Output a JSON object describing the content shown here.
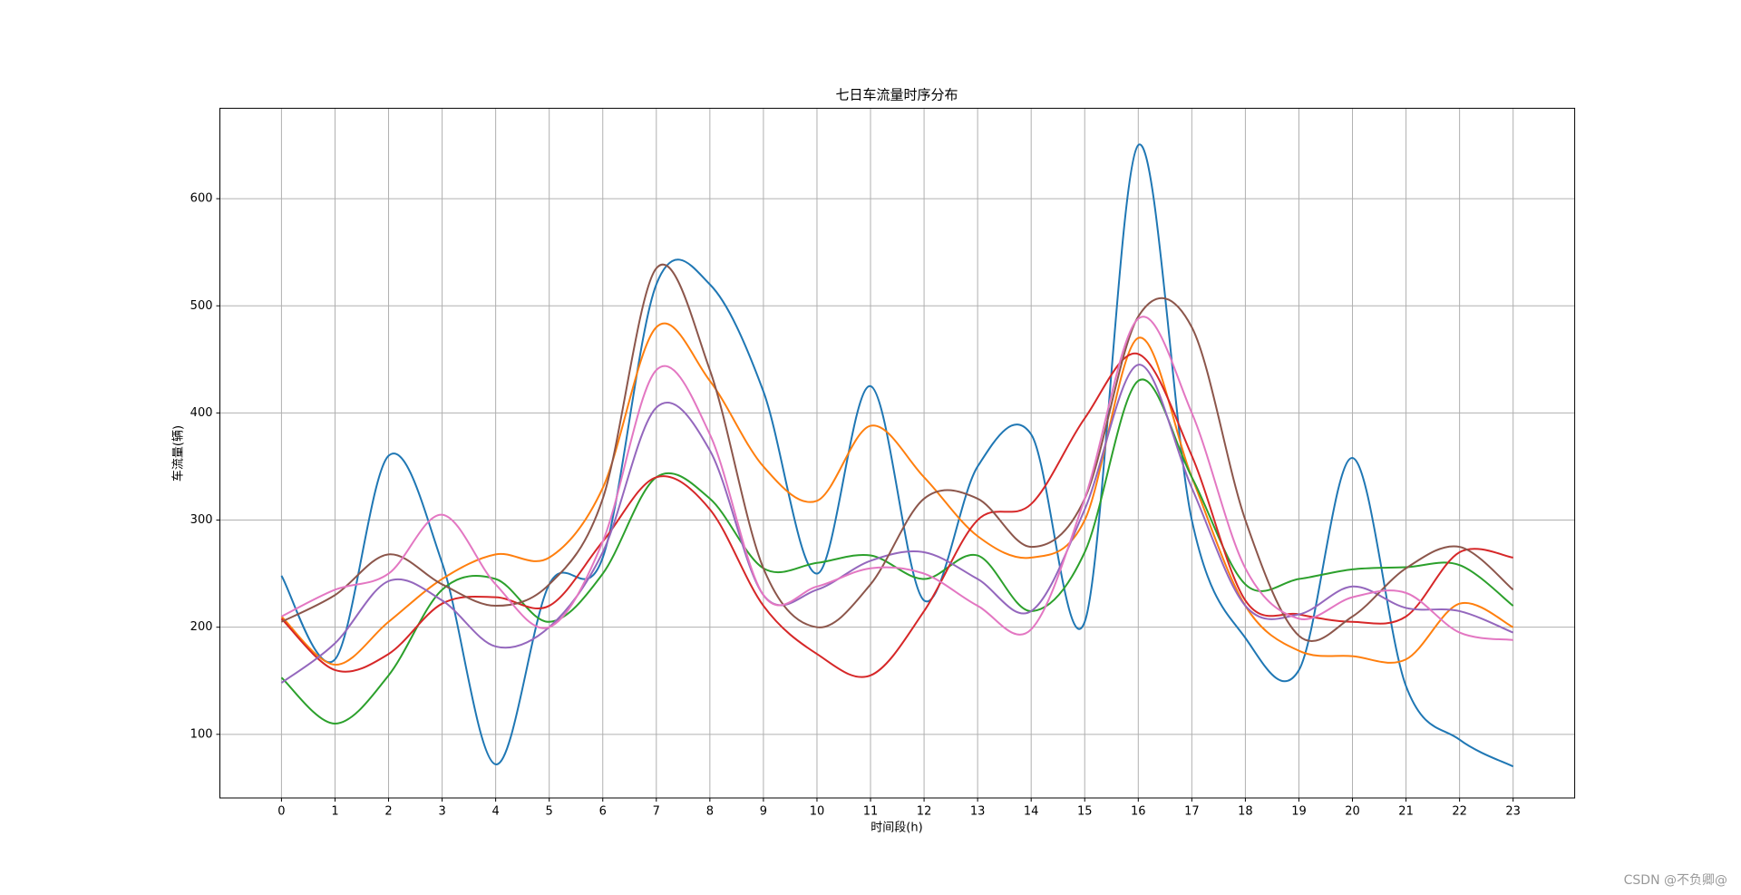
{
  "chart_data": {
    "type": "line",
    "title": "七日车流量时序分布",
    "x_label": "时间段(h)",
    "y_label": "车流量(辆)",
    "x": [
      0,
      1,
      2,
      3,
      4,
      5,
      6,
      7,
      8,
      9,
      10,
      11,
      12,
      13,
      14,
      15,
      16,
      17,
      18,
      19,
      20,
      21,
      22,
      23
    ],
    "xlim": [
      -1.15,
      24.15
    ],
    "xticks": [
      0,
      1,
      2,
      3,
      4,
      5,
      6,
      7,
      8,
      9,
      10,
      11,
      12,
      13,
      14,
      15,
      16,
      17,
      18,
      19,
      20,
      21,
      22,
      23
    ],
    "ylim": [
      40.6,
      684.4
    ],
    "yticks": [
      100,
      200,
      300,
      400,
      500,
      600
    ],
    "grid": true,
    "smooth": true,
    "series": [
      {
        "color": "#1f77b4",
        "values": [
          248,
          170,
          360,
          260,
          72,
          240,
          265,
          520,
          520,
          420,
          250,
          425,
          225,
          350,
          380,
          205,
          650,
          300,
          190,
          160,
          358,
          145,
          95,
          70
        ]
      },
      {
        "color": "#ff7f0e",
        "values": [
          210,
          165,
          205,
          245,
          268,
          265,
          330,
          480,
          430,
          350,
          318,
          388,
          340,
          285,
          265,
          300,
          470,
          340,
          220,
          178,
          173,
          170,
          222,
          200
        ]
      },
      {
        "color": "#2ca02c",
        "values": [
          153,
          110,
          155,
          235,
          245,
          205,
          250,
          340,
          320,
          255,
          260,
          267,
          245,
          267,
          215,
          270,
          430,
          340,
          240,
          245,
          254,
          256,
          258,
          220
        ]
      },
      {
        "color": "#d62728",
        "values": [
          208,
          160,
          175,
          222,
          228,
          220,
          280,
          340,
          310,
          220,
          175,
          155,
          215,
          300,
          315,
          395,
          455,
          360,
          225,
          212,
          205,
          210,
          270,
          265
        ]
      },
      {
        "color": "#9467bd",
        "values": [
          148,
          185,
          243,
          225,
          182,
          200,
          270,
          405,
          365,
          230,
          235,
          262,
          270,
          245,
          215,
          310,
          445,
          330,
          220,
          212,
          238,
          218,
          215,
          195
        ]
      },
      {
        "color": "#8c564b",
        "values": [
          205,
          230,
          268,
          240,
          220,
          240,
          320,
          535,
          440,
          255,
          200,
          240,
          320,
          320,
          275,
          320,
          490,
          480,
          300,
          192,
          210,
          255,
          275,
          235
        ]
      },
      {
        "color": "#e377c2",
        "values": [
          210,
          235,
          250,
          305,
          240,
          200,
          280,
          440,
          380,
          230,
          238,
          255,
          250,
          220,
          198,
          320,
          488,
          400,
          255,
          208,
          228,
          232,
          195,
          188
        ]
      }
    ]
  },
  "watermark": "CSDN @不负卿@"
}
